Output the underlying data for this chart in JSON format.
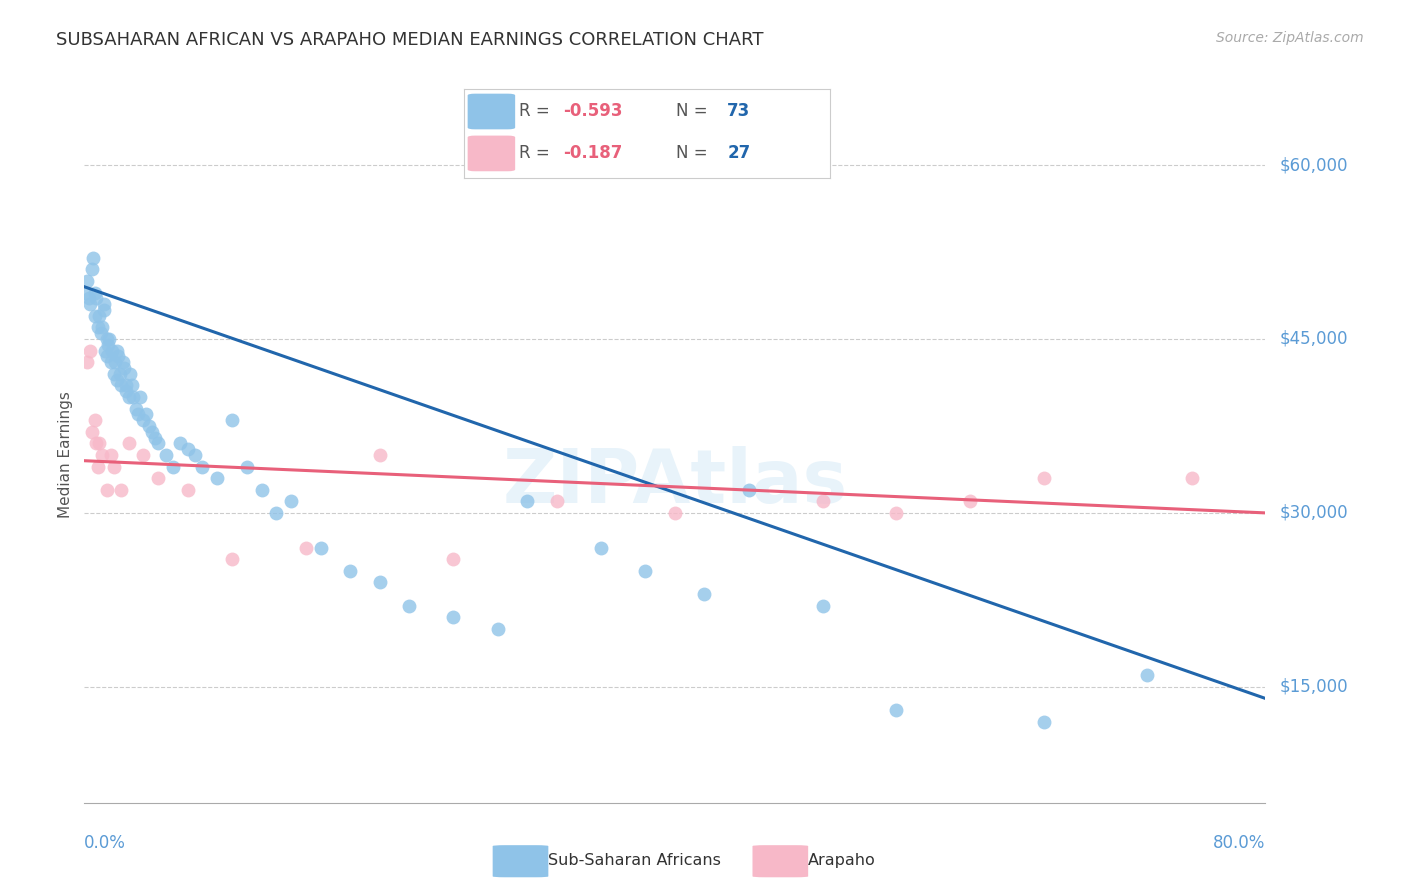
{
  "title": "SUBSAHARAN AFRICAN VS ARAPAHO MEDIAN EARNINGS CORRELATION CHART",
  "source": "Source: ZipAtlas.com",
  "ylabel": "Median Earnings",
  "y_tick_labels": [
    "$15,000",
    "$30,000",
    "$45,000",
    "$60,000"
  ],
  "y_tick_values": [
    15000,
    30000,
    45000,
    60000
  ],
  "ylim": [
    5000,
    65000
  ],
  "xlim": [
    0.0,
    0.8
  ],
  "blue_color": "#8fc3e8",
  "blue_line_color": "#2166ac",
  "pink_color": "#f7b8c8",
  "pink_line_color": "#e8607a",
  "r_blue": "-0.593",
  "n_blue": "73",
  "r_pink": "-0.187",
  "n_pink": "27",
  "blue_scatter_x": [
    0.001,
    0.002,
    0.003,
    0.004,
    0.005,
    0.006,
    0.007,
    0.007,
    0.008,
    0.009,
    0.01,
    0.011,
    0.012,
    0.013,
    0.013,
    0.014,
    0.015,
    0.015,
    0.016,
    0.017,
    0.018,
    0.019,
    0.02,
    0.021,
    0.022,
    0.022,
    0.023,
    0.024,
    0.025,
    0.026,
    0.027,
    0.028,
    0.028,
    0.03,
    0.031,
    0.032,
    0.033,
    0.035,
    0.036,
    0.038,
    0.04,
    0.042,
    0.044,
    0.046,
    0.048,
    0.05,
    0.055,
    0.06,
    0.065,
    0.07,
    0.075,
    0.08,
    0.09,
    0.1,
    0.11,
    0.12,
    0.13,
    0.14,
    0.16,
    0.18,
    0.2,
    0.22,
    0.25,
    0.28,
    0.3,
    0.35,
    0.38,
    0.42,
    0.45,
    0.5,
    0.55,
    0.65,
    0.72
  ],
  "blue_scatter_y": [
    49000,
    50000,
    48500,
    48000,
    51000,
    52000,
    49000,
    47000,
    48500,
    46000,
    47000,
    45500,
    46000,
    47500,
    48000,
    44000,
    45000,
    43500,
    44500,
    45000,
    43000,
    44000,
    42000,
    43000,
    41500,
    44000,
    43500,
    42000,
    41000,
    43000,
    42500,
    41000,
    40500,
    40000,
    42000,
    41000,
    40000,
    39000,
    38500,
    40000,
    38000,
    38500,
    37500,
    37000,
    36500,
    36000,
    35000,
    34000,
    36000,
    35500,
    35000,
    34000,
    33000,
    38000,
    34000,
    32000,
    30000,
    31000,
    27000,
    25000,
    24000,
    22000,
    21000,
    20000,
    31000,
    27000,
    25000,
    23000,
    32000,
    22000,
    13000,
    12000,
    16000
  ],
  "pink_scatter_x": [
    0.002,
    0.004,
    0.005,
    0.007,
    0.008,
    0.009,
    0.01,
    0.012,
    0.015,
    0.018,
    0.02,
    0.025,
    0.03,
    0.04,
    0.05,
    0.07,
    0.1,
    0.15,
    0.2,
    0.25,
    0.32,
    0.4,
    0.5,
    0.55,
    0.6,
    0.65,
    0.75
  ],
  "pink_scatter_y": [
    43000,
    44000,
    37000,
    38000,
    36000,
    34000,
    36000,
    35000,
    32000,
    35000,
    34000,
    32000,
    36000,
    35000,
    33000,
    32000,
    26000,
    27000,
    35000,
    26000,
    31000,
    30000,
    31000,
    30000,
    31000,
    33000,
    33000
  ],
  "blue_trendline_x": [
    0.0,
    0.8
  ],
  "blue_trendline_y": [
    49500,
    14000
  ],
  "pink_trendline_x": [
    0.0,
    0.8
  ],
  "pink_trendline_y": [
    34500,
    30000
  ]
}
